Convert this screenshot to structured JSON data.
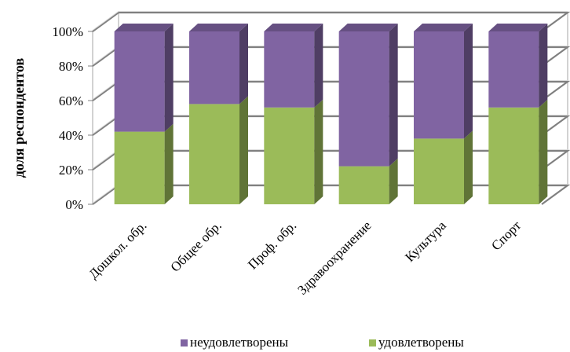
{
  "chart_data": {
    "type": "bar",
    "stacked": true,
    "percent": true,
    "three_d": true,
    "categories": [
      "Дошкол. обр.",
      "Общее обр.",
      "Проф. обр.",
      "Здравоохранение",
      "Культура",
      "Спорт"
    ],
    "series": [
      {
        "name": "удовлетворены",
        "color": "#9bbb59",
        "values": [
          42,
          58,
          56,
          22,
          38,
          56
        ]
      },
      {
        "name": "неудовлетворены",
        "color": "#8064a2",
        "values": [
          58,
          42,
          44,
          78,
          62,
          44
        ]
      }
    ],
    "ylabel": "доля респондентов",
    "yticks": [
      "0%",
      "20%",
      "40%",
      "60%",
      "80%",
      "100%"
    ],
    "ylim": [
      0,
      100
    ],
    "grid": true,
    "legend_position": "bottom"
  }
}
